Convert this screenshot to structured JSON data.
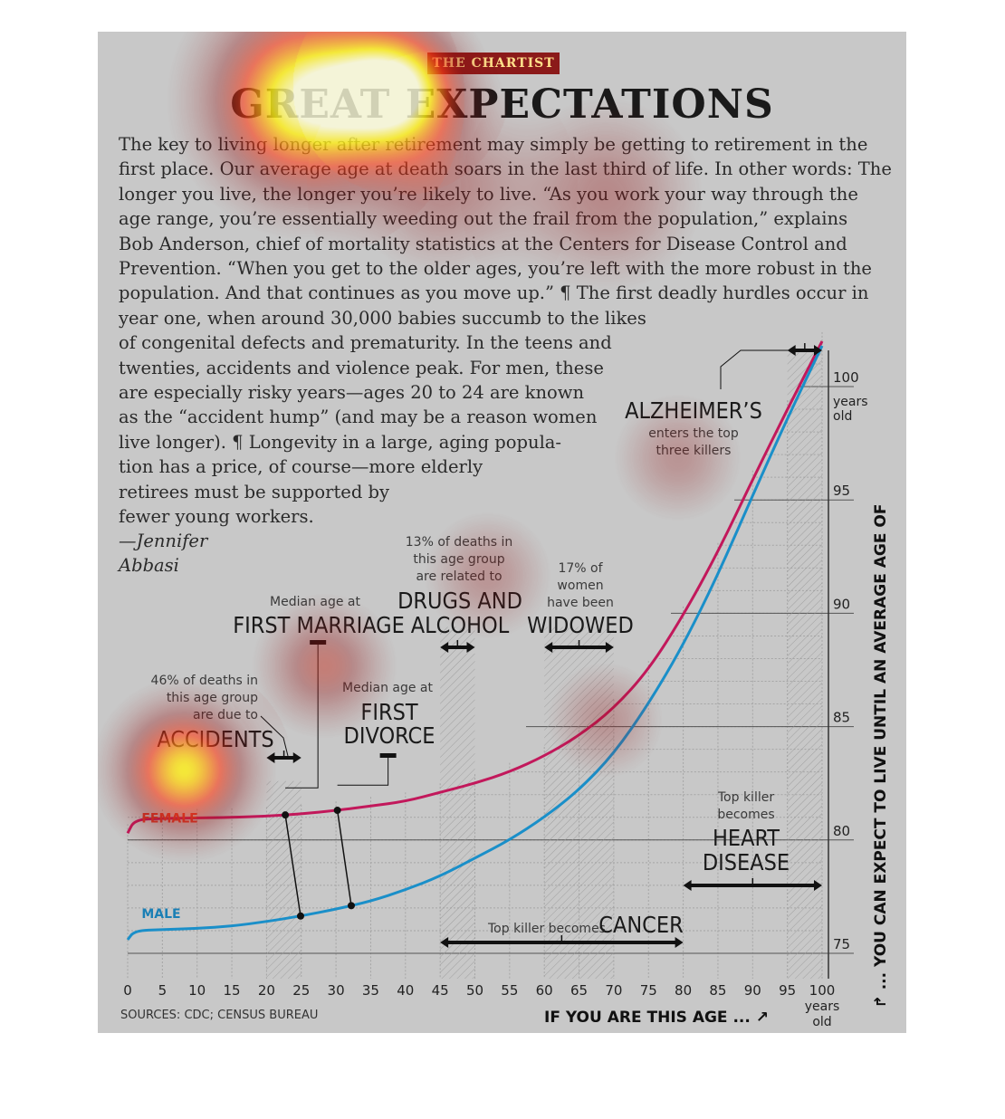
{
  "header": {
    "badge": "THE CHARTIST",
    "title": "GREAT EXPECTATIONS"
  },
  "body_lines": [
    "The key to living longer after retirement may simply be getting to retirement in the",
    "first place. Our average age at death soars in the last third of life. In other words: The",
    "longer you live, the longer you’re likely to live. “As you work your way through the",
    "age range, you’re essentially weeding out the frail from the population,” explains",
    "Bob Anderson, chief of mortality statistics at the Centers for Disease Control and",
    "Prevention. “When you get to the older ages, you’re left with the more robust in the",
    "population. And that continues as you move up.” ¶ The first deadly hurdles occur in",
    "year one, when around 30,000 babies succumb to the likes",
    "of congenital defects and prematurity. In the teens and",
    "twenties, accidents and violence peak. For men, these",
    "are especially risky years—ages 20 to 24 are known",
    "as the “accident hump” (and may be a reason women",
    "live longer). ¶ Longevity in a large, aging popula-",
    "tion has a price, of course—more elderly",
    "retirees must be supported by",
    "fewer young workers."
  ],
  "byline": [
    "—Jennifer",
    "Abbasi"
  ],
  "annotations": {
    "accidents": {
      "small": [
        "46% of deaths in",
        "this age group",
        "are due to"
      ],
      "big": "ACCIDENTS"
    },
    "marriage": {
      "small": "Median age at",
      "big": "FIRST MARRIAGE"
    },
    "divorce": {
      "small": "Median age at",
      "big": [
        "FIRST",
        "DIVORCE"
      ]
    },
    "drugs": {
      "small": [
        "13% of deaths in",
        "this age group",
        "are related to"
      ],
      "big": [
        "DRUGS AND",
        "ALCOHOL"
      ]
    },
    "widowed": {
      "small": [
        "17% of",
        "women",
        "have been"
      ],
      "big": "WIDOWED"
    },
    "alzheimers": {
      "big": "ALZHEIMER’S",
      "small": [
        "enters the top",
        "three killers"
      ]
    },
    "heart": {
      "small": [
        "Top killer",
        "becomes"
      ],
      "big": [
        "HEART",
        "DISEASE"
      ]
    },
    "cancer": {
      "small": "Top killer becomes",
      "big": "CANCER"
    }
  },
  "chart_data": {
    "type": "line",
    "xlabel": "IF YOU ARE THIS AGE ...",
    "ylabel": "... YOU CAN EXPECT TO LIVE UNTIL AN AVERAGE AGE OF",
    "x_ticks": [
      "0",
      "5",
      "10",
      "15",
      "20",
      "25",
      "30",
      "35",
      "40",
      "45",
      "50",
      "55",
      "60",
      "65",
      "70",
      "75",
      "80",
      "85",
      "90",
      "95",
      "100"
    ],
    "x_unit": [
      "years",
      "old"
    ],
    "y_ticks": [
      "75",
      "80",
      "85",
      "90",
      "95",
      "100"
    ],
    "y_unit": [
      "years",
      "old"
    ],
    "xlim": [
      0,
      100
    ],
    "ylim": [
      75,
      101.5
    ],
    "source": "SOURCES: CDC; CENSUS BUREAU",
    "series": [
      {
        "name": "FEMALE",
        "color": "#c2185b",
        "x": [
          0,
          1,
          5,
          10,
          15,
          20,
          25,
          30,
          35,
          40,
          45,
          50,
          55,
          60,
          65,
          70,
          75,
          80,
          85,
          90,
          95,
          100
        ],
        "y": [
          80.3,
          80.9,
          80.95,
          80.97,
          81.0,
          81.05,
          81.15,
          81.3,
          81.5,
          81.7,
          82.1,
          82.5,
          83.0,
          83.7,
          84.6,
          85.8,
          87.5,
          89.9,
          92.7,
          95.9,
          99.0,
          102.0
        ]
      },
      {
        "name": "MALE",
        "color": "#1a8fc9",
        "x": [
          0,
          1,
          5,
          10,
          15,
          20,
          25,
          30,
          35,
          40,
          45,
          50,
          55,
          60,
          65,
          70,
          75,
          80,
          85,
          90,
          95,
          100
        ],
        "y": [
          75.6,
          76.0,
          76.05,
          76.1,
          76.2,
          76.4,
          76.65,
          76.95,
          77.3,
          77.8,
          78.4,
          79.2,
          80.0,
          81.0,
          82.2,
          83.8,
          86.0,
          88.6,
          91.7,
          95.2,
          98.6,
          101.8
        ]
      }
    ],
    "age_ranges": [
      {
        "name": "accidents",
        "from": 20,
        "to": 25
      },
      {
        "name": "drugs",
        "from": 45,
        "to": 50
      },
      {
        "name": "widowed",
        "from": 60,
        "to": 70
      },
      {
        "name": "cancer",
        "from": 45,
        "to": 80
      },
      {
        "name": "heart",
        "from": 80,
        "to": 100
      },
      {
        "name": "alzheimers",
        "from": 95,
        "to": 100
      }
    ],
    "markers": [
      {
        "name": "first-marriage",
        "female_age": 22.7,
        "male_age": 24.9
      },
      {
        "name": "first-divorce",
        "female_age": 30.2,
        "male_age": 32.2
      }
    ]
  }
}
